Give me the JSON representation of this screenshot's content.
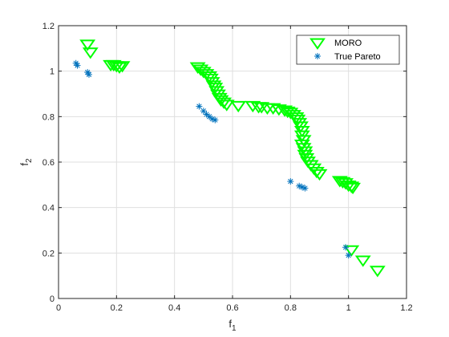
{
  "chart_data": {
    "type": "scatter",
    "title": "",
    "xlabel": "f",
    "xlabel_sub": "1",
    "ylabel": "f",
    "ylabel_sub": "2",
    "xlim": [
      0,
      1.2
    ],
    "ylim": [
      0,
      1.2
    ],
    "xticks": [
      0,
      0.2,
      0.4,
      0.6,
      0.8,
      1,
      1.2
    ],
    "yticks": [
      0,
      0.2,
      0.4,
      0.6,
      0.8,
      1,
      1.2
    ],
    "xtick_labels": [
      "0",
      "0.2",
      "0.4",
      "0.6",
      "0.8",
      "1",
      "1.2"
    ],
    "ytick_labels": [
      "0",
      "0.2",
      "0.4",
      "0.6",
      "0.8",
      "1",
      "1.2"
    ],
    "grid": true,
    "legend_position": "top-right",
    "series": [
      {
        "name": "MORO",
        "marker": "triangle-down",
        "color": "#00ff00",
        "points": [
          [
            0.1,
            1.12
          ],
          [
            0.11,
            1.085
          ],
          [
            0.18,
            1.03
          ],
          [
            0.19,
            1.03
          ],
          [
            0.2,
            1.025
          ],
          [
            0.21,
            1.02
          ],
          [
            0.22,
            1.025
          ],
          [
            0.48,
            1.02
          ],
          [
            0.49,
            1.01
          ],
          [
            0.5,
            1.0
          ],
          [
            0.51,
            0.99
          ],
          [
            0.52,
            0.98
          ],
          [
            0.525,
            0.97
          ],
          [
            0.53,
            0.955
          ],
          [
            0.535,
            0.94
          ],
          [
            0.54,
            0.93
          ],
          [
            0.545,
            0.915
          ],
          [
            0.55,
            0.9
          ],
          [
            0.555,
            0.885
          ],
          [
            0.56,
            0.875
          ],
          [
            0.57,
            0.865
          ],
          [
            0.58,
            0.855
          ],
          [
            0.62,
            0.85
          ],
          [
            0.67,
            0.85
          ],
          [
            0.69,
            0.845
          ],
          [
            0.7,
            0.845
          ],
          [
            0.72,
            0.84
          ],
          [
            0.74,
            0.84
          ],
          [
            0.76,
            0.835
          ],
          [
            0.78,
            0.83
          ],
          [
            0.79,
            0.825
          ],
          [
            0.8,
            0.82
          ],
          [
            0.81,
            0.81
          ],
          [
            0.82,
            0.8
          ],
          [
            0.825,
            0.79
          ],
          [
            0.83,
            0.775
          ],
          [
            0.835,
            0.76
          ],
          [
            0.84,
            0.74
          ],
          [
            0.84,
            0.72
          ],
          [
            0.845,
            0.7
          ],
          [
            0.84,
            0.68
          ],
          [
            0.845,
            0.665
          ],
          [
            0.85,
            0.65
          ],
          [
            0.85,
            0.635
          ],
          [
            0.855,
            0.62
          ],
          [
            0.86,
            0.605
          ],
          [
            0.87,
            0.59
          ],
          [
            0.88,
            0.575
          ],
          [
            0.89,
            0.56
          ],
          [
            0.9,
            0.55
          ],
          [
            0.97,
            0.52
          ],
          [
            0.98,
            0.515
          ],
          [
            0.99,
            0.51
          ],
          [
            1.0,
            0.5
          ],
          [
            1.01,
            0.495
          ],
          [
            1.015,
            0.49
          ],
          [
            1.01,
            0.215
          ],
          [
            1.05,
            0.17
          ],
          [
            1.1,
            0.125
          ]
        ]
      },
      {
        "name": "True Pareto",
        "marker": "asterisk",
        "color": "#0072bd",
        "points": [
          [
            0.06,
            1.035
          ],
          [
            0.065,
            1.025
          ],
          [
            0.1,
            0.995
          ],
          [
            0.105,
            0.985
          ],
          [
            0.485,
            0.845
          ],
          [
            0.5,
            0.825
          ],
          [
            0.51,
            0.81
          ],
          [
            0.52,
            0.8
          ],
          [
            0.53,
            0.79
          ],
          [
            0.54,
            0.785
          ],
          [
            0.8,
            0.515
          ],
          [
            0.83,
            0.495
          ],
          [
            0.84,
            0.49
          ],
          [
            0.85,
            0.485
          ],
          [
            0.99,
            0.225
          ],
          [
            1.0,
            0.19
          ]
        ]
      }
    ]
  }
}
